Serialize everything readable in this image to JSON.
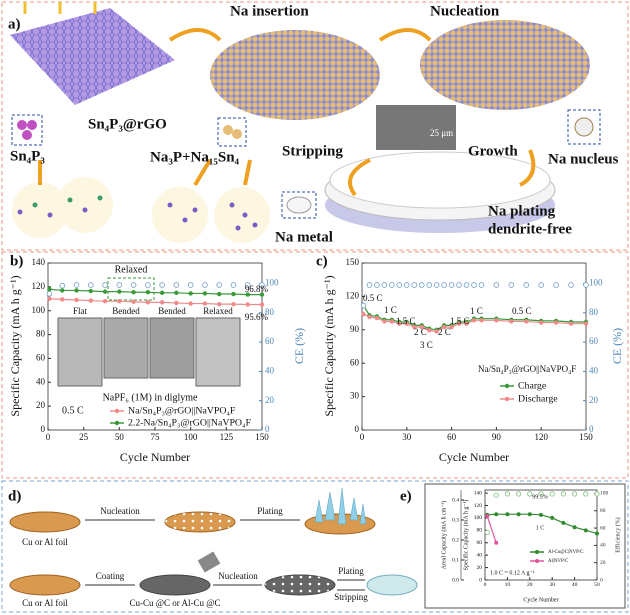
{
  "figure": {
    "a": {
      "label": "a)",
      "na_insertion": "Na insertion",
      "nucleation": "Nucleation",
      "sn4p3_rgo": "Sn₄P₃@rGO",
      "sn4p3": "Sn₄P₃",
      "products": "Na₃P+Na₁₅Sn₄",
      "stripping": "Stripping",
      "growth": "Growth",
      "na_nucleus": "Na nucleus",
      "na_plating": "Na plating",
      "dendrite_free": "dendrite-free",
      "na_metal": "Na metal",
      "scale_bar": "25 μm"
    },
    "d": {
      "label": "d)",
      "foil_top": "Cu or Al foil",
      "nucleation_top": "Nucleation",
      "plating_top": "Plating",
      "foil_bottom": "Cu or Al foil",
      "coating": "Coating",
      "coated_foil": "Cu-Cu @C or Al-Cu @C",
      "nucleation_bottom": "Nucleation",
      "plating_bottom": "Plating",
      "stripping_bottom": "Stripping"
    }
  },
  "chart_data": [
    {
      "type": "line",
      "label": "b)",
      "xlabel": "Cycle Number",
      "ylabel": "Specific Capacity (mA h g⁻¹)",
      "y2label": "CE (%)",
      "y2color": "#4f86b8",
      "x": [
        1,
        10,
        20,
        30,
        40,
        50,
        60,
        70,
        80,
        90,
        100,
        110,
        120,
        130,
        140,
        150
      ],
      "xlim": [
        0,
        150
      ],
      "xticks": [
        0,
        25,
        50,
        75,
        100,
        125,
        150
      ],
      "ylim": [
        0,
        140
      ],
      "yticks": [
        0,
        20,
        40,
        60,
        80,
        100,
        120,
        140
      ],
      "y2lim": [
        0,
        114
      ],
      "y2ticks": [
        0,
        20,
        40,
        60,
        80,
        100
      ],
      "series": [
        {
          "name": "Na/Sn₄P₃@rGO||NaVPO₄F",
          "color": "#f08a8a",
          "style": "line",
          "values": [
            110,
            109.5,
            109,
            108.5,
            108,
            108,
            107.5,
            107,
            107,
            106.5,
            106,
            106,
            105.5,
            105.5,
            105.2,
            105.2
          ]
        },
        {
          "name": "2.2-Na/Sn₄P₃@rGO||NaVPO₄F",
          "color": "#3a9a3a",
          "style": "line",
          "values": [
            118,
            117,
            117,
            116.5,
            116,
            116,
            115.5,
            115.5,
            115,
            115,
            114.5,
            114.5,
            114,
            114,
            113.5,
            113.5
          ]
        },
        {
          "color": "#6e9cc7",
          "style": "scatter",
          "axis": "y2",
          "values": [
            93,
            98.5,
            99,
            99,
            99,
            99,
            99,
            99,
            99,
            99,
            99,
            99,
            99,
            99,
            99,
            99
          ]
        }
      ],
      "annotations": [
        "Relaxed",
        "96.8%",
        "95.6%",
        "Flat",
        "Bended",
        "Bended",
        "Relaxed",
        "NaPF₆ (1M) in diglyme",
        "0.5 C"
      ]
    },
    {
      "type": "line",
      "label": "c)",
      "xlabel": "Cycle Number",
      "ylabel": "Specific Capacity (mA h g⁻¹)",
      "y2label": "CE (%)",
      "y2color": "#4f86b8",
      "x": [
        1,
        5,
        10,
        15,
        20,
        25,
        30,
        35,
        40,
        45,
        50,
        55,
        60,
        65,
        70,
        75,
        80,
        90,
        100,
        110,
        120,
        130,
        140,
        150
      ],
      "xlim": [
        0,
        150
      ],
      "xticks": [
        0,
        30,
        60,
        90,
        120,
        150
      ],
      "ylim": [
        0,
        150
      ],
      "yticks": [
        0,
        30,
        60,
        90,
        120,
        150
      ],
      "y2lim": [
        0,
        114
      ],
      "y2ticks": [
        0,
        20,
        40,
        60,
        80,
        100
      ],
      "series": [
        {
          "name": "Charge",
          "color": "#3a9a3a",
          "style": "line",
          "values": [
            112,
            103,
            102,
            99,
            99,
            97,
            97,
            94,
            94,
            91,
            90,
            94,
            94,
            97,
            97,
            100,
            100,
            100,
            99,
            99,
            98,
            98,
            97,
            97
          ]
        },
        {
          "name": "Discharge",
          "color": "#f08a8a",
          "style": "line",
          "values": [
            104,
            101.5,
            100.5,
            97.5,
            97.5,
            95.5,
            95.5,
            92.5,
            92.5,
            89.5,
            88.5,
            92.5,
            92.5,
            95.5,
            95.5,
            98.5,
            98.5,
            98.5,
            97.5,
            97.5,
            96.5,
            96.5,
            95.5,
            95.5
          ]
        },
        {
          "color": "#6e9cc7",
          "style": "scatter",
          "axis": "y2",
          "values": [
            85,
            99,
            99,
            99,
            99,
            99,
            99,
            99,
            99,
            99,
            99,
            99,
            99,
            99,
            99,
            99,
            99,
            99,
            99,
            99,
            99,
            99,
            99,
            99
          ]
        }
      ],
      "annotations": [
        "0.5 C",
        "1 C",
        "1.5 C",
        "2 C",
        "3 C",
        "2 C",
        "1.5 C",
        "1 C",
        "0.5 C",
        "Na/Sn₄P₃@rGO||NaVPO₄F"
      ]
    },
    {
      "type": "line",
      "label": "e)",
      "xlabel": "Cycle Number",
      "ylabel": "Specific Capacity (mA h g⁻¹)",
      "y2label": "Efficiency (%)",
      "y3label": "Areal Capacity (mA h cm⁻²)",
      "y2color": "#333333",
      "x": [
        1,
        5,
        10,
        15,
        20,
        25,
        30,
        35,
        40,
        45,
        50
      ],
      "xlim": [
        0,
        50
      ],
      "xticks": [
        0,
        10,
        20,
        30,
        40,
        50
      ],
      "ylim": [
        0,
        145
      ],
      "yticks": [
        0,
        20,
        40,
        60,
        80,
        100,
        120,
        140
      ],
      "y2lim": [
        0,
        104
      ],
      "y2ticks": [
        0,
        20,
        40,
        60,
        80,
        100
      ],
      "y3lim": [
        0,
        0.45
      ],
      "y3ticks": [
        {
          "value": 0,
          "label": "0.0"
        },
        0.1,
        0.2,
        0.3,
        0.4
      ],
      "series": [
        {
          "name": "Al-Cu@C|NVP/C",
          "color": "#2e8b2e",
          "style": "line",
          "values": [
            105,
            106,
            106,
            106,
            106,
            105,
            100,
            92,
            85,
            80,
            75
          ]
        },
        {
          "name": "Al|NVP/C",
          "color": "#e0559a",
          "style": "line",
          "values": [
            103,
            60,
            null,
            null,
            null,
            null,
            null,
            null,
            null,
            null,
            null
          ]
        },
        {
          "color": "#7bbf7b",
          "style": "scatter",
          "axis": "y2",
          "values": [
            55,
            98,
            99.5,
            99.5,
            99.5,
            99.5,
            99.5,
            99.5,
            99.5,
            99.5,
            99.5
          ]
        }
      ],
      "annotations": [
        "99.5%",
        "1 C",
        "1.0 C = 0.12 A g⁻¹"
      ]
    }
  ]
}
